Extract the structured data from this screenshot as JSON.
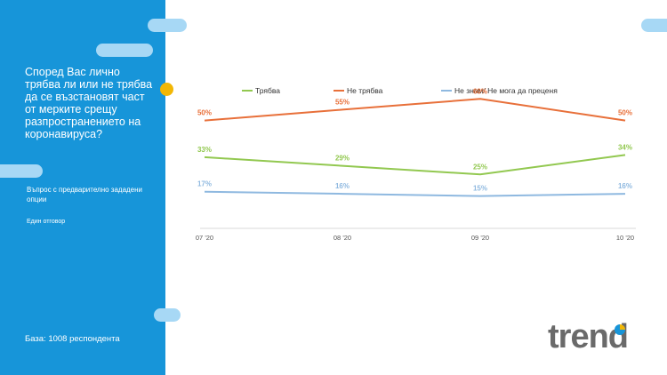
{
  "question": "Според Вас лично трябва ли или не трябва да се възстановят част от мерките срещу разпространението на коронавируса?",
  "subnote": "Въпрос с предварително зададени опции",
  "answer_type": "Един отговор",
  "base": "База: 1008 респондента",
  "logo": "trend",
  "colors": {
    "panel": "#1795d9",
    "accent": "#f2b705",
    "pill": "#a7d8f5"
  },
  "chart_data": {
    "type": "line",
    "categories": [
      "07 '20",
      "08 '20",
      "09 '20",
      "10 '20"
    ],
    "ylim": [
      0,
      70
    ],
    "legend_position": "top",
    "grid": false,
    "series": [
      {
        "name": "Трябва",
        "color": "#92c850",
        "values": [
          33,
          29,
          25,
          34
        ],
        "labels": [
          "33%",
          "29%",
          "25%",
          "34%"
        ]
      },
      {
        "name": "Не трябва",
        "color": "#e8703a",
        "values": [
          50,
          55,
          60,
          50
        ],
        "labels": [
          "50%",
          "55%",
          "60%",
          "50%"
        ]
      },
      {
        "name": "Не знам/ Не мога да преценя",
        "color": "#8fb9e0",
        "values": [
          17,
          16,
          15,
          16
        ],
        "labels": [
          "17%",
          "16%",
          "15%",
          "16%"
        ]
      }
    ]
  }
}
